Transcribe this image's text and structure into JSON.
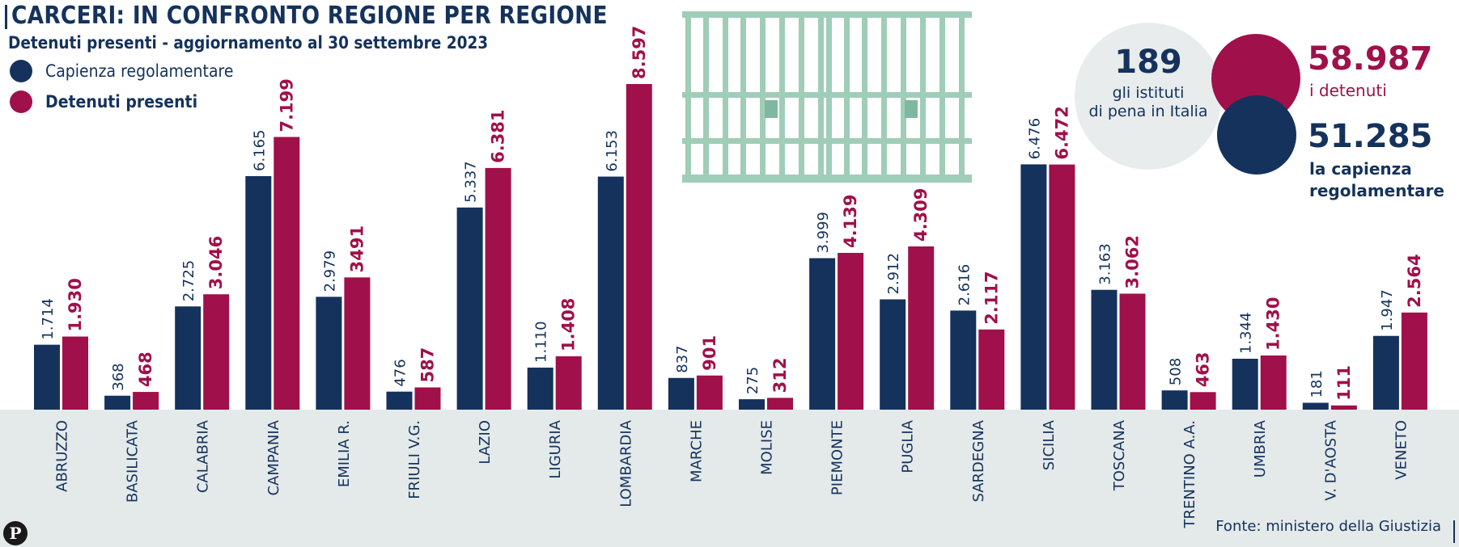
{
  "title": "CARCERI: IN CONFRONTO REGIONE PER REGIONE",
  "subtitle": "Detenuti presenti - aggiornamento al 30 settembre 2023",
  "legend": {
    "capienza_label": "Capienza regolamentare",
    "detenuti_label": "Detenuti presenti"
  },
  "colors": {
    "capienza": "#14325c",
    "detenuti": "#a0104a",
    "band": "#e4e9e9",
    "grey_bubble": "#e8ecec",
    "bars_illustration": "#9fcdb8"
  },
  "stats": {
    "istituti_value": "189",
    "istituti_label_line1": "gli istituti",
    "istituti_label_line2": "di pena in Italia",
    "detenuti_value": "58.987",
    "detenuti_label": "i detenuti",
    "capienza_value": "51.285",
    "capienza_label_line1": "la capienza",
    "capienza_label_line2": "regolamentare"
  },
  "source": "Fonte: ministero della Giustizia",
  "logo": "P",
  "chart_data": {
    "type": "bar",
    "title": "CARCERI: IN CONFRONTO REGIONE PER REGIONE",
    "xlabel": "",
    "ylabel": "",
    "ylim": [
      0,
      8600
    ],
    "categories": [
      "ABRUZZO",
      "BASILICATA",
      "CALABRIA",
      "CAMPANIA",
      "EMILIA R.",
      "FRIULI V.G.",
      "LAZIO",
      "LIGURIA",
      "LOMBARDIA",
      "MARCHE",
      "MOLISE",
      "PIEMONTE",
      "PUGLIA",
      "SARDEGNA",
      "SICILIA",
      "TOSCANA",
      "TRENTINO A.A.",
      "UMBRIA",
      "V. D'AOSTA",
      "VENETO"
    ],
    "series": [
      {
        "name": "Capienza regolamentare",
        "values": [
          1714,
          368,
          2725,
          6165,
          2979,
          476,
          5337,
          1110,
          6153,
          837,
          275,
          3999,
          2912,
          2616,
          6476,
          3163,
          508,
          1344,
          181,
          1947
        ],
        "labels": [
          "1.714",
          "368",
          "2.725",
          "6.165",
          "2.979",
          "476",
          "5.337",
          "1.110",
          "6.153",
          "837",
          "275",
          "3.999",
          "2.912",
          "2.616",
          "6.476",
          "3.163",
          "508",
          "1.344",
          "181",
          "1.947"
        ]
      },
      {
        "name": "Detenuti presenti",
        "values": [
          1930,
          468,
          3046,
          7199,
          3491,
          587,
          6381,
          1408,
          8597,
          901,
          312,
          4139,
          4309,
          2117,
          6472,
          3062,
          463,
          1430,
          111,
          2564
        ],
        "labels": [
          "1.930",
          "468",
          "3.046",
          "7.199",
          "3491",
          "587",
          "6.381",
          "1.408",
          "8.597",
          "901",
          "312",
          "4.139",
          "4.309",
          "2.117",
          "6.472",
          "3.062",
          "463",
          "1.430",
          "111",
          "2.564"
        ]
      }
    ]
  }
}
